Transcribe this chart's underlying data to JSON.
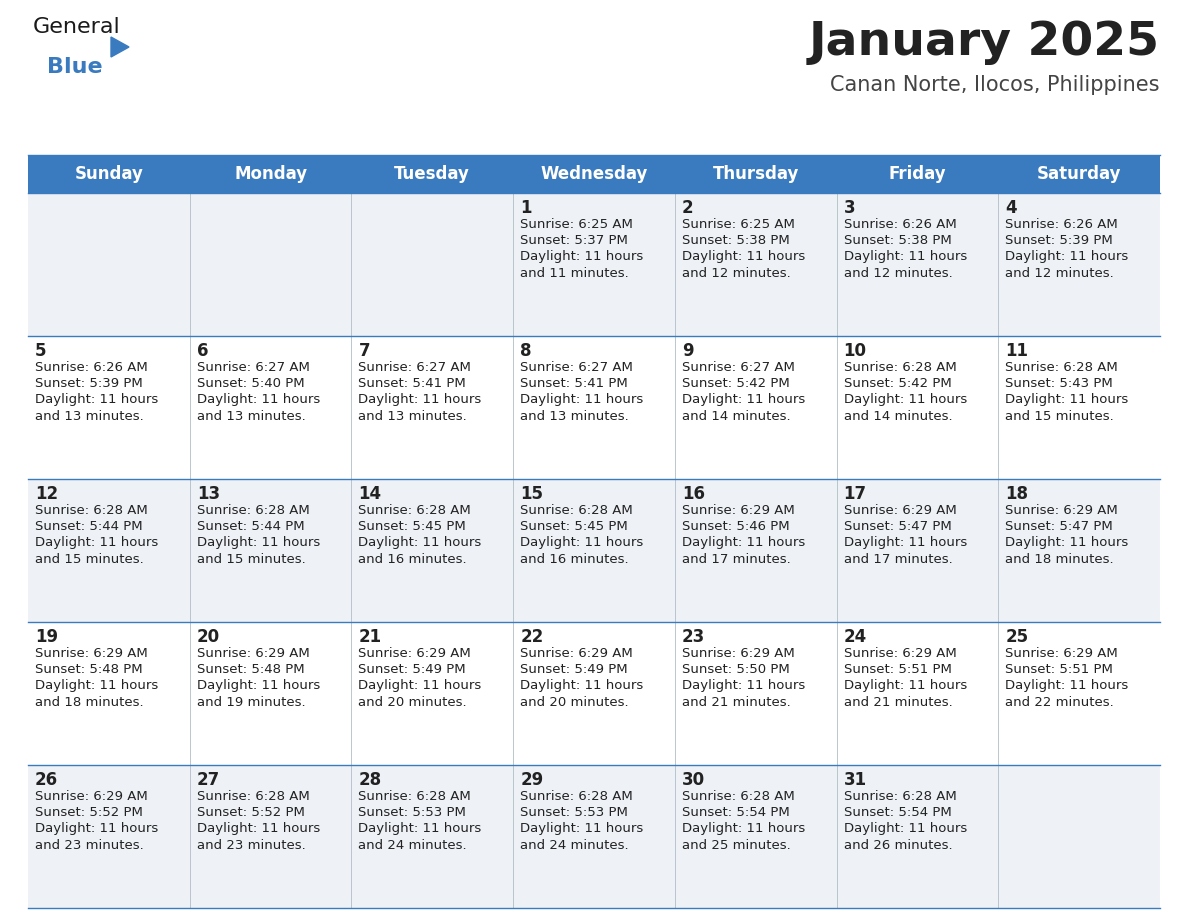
{
  "title": "January 2025",
  "subtitle": "Canan Norte, Ilocos, Philippines",
  "header_color": "#3a7bbf",
  "header_text_color": "#ffffff",
  "day_names": [
    "Sunday",
    "Monday",
    "Tuesday",
    "Wednesday",
    "Thursday",
    "Friday",
    "Saturday"
  ],
  "bg_color": "#ffffff",
  "cell_bg_even": "#eef2f7",
  "cell_bg_odd": "#ffffff",
  "row_line_color": "#3a7bbf",
  "text_color": "#222222",
  "title_color": "#222222",
  "subtitle_color": "#444444",
  "calendar": [
    [
      {
        "day": "",
        "sunrise": "",
        "sunset": "",
        "daylight": ""
      },
      {
        "day": "",
        "sunrise": "",
        "sunset": "",
        "daylight": ""
      },
      {
        "day": "",
        "sunrise": "",
        "sunset": "",
        "daylight": ""
      },
      {
        "day": "1",
        "sunrise": "6:25 AM",
        "sunset": "5:37 PM",
        "daylight": "11 hours\nand 11 minutes."
      },
      {
        "day": "2",
        "sunrise": "6:25 AM",
        "sunset": "5:38 PM",
        "daylight": "11 hours\nand 12 minutes."
      },
      {
        "day": "3",
        "sunrise": "6:26 AM",
        "sunset": "5:38 PM",
        "daylight": "11 hours\nand 12 minutes."
      },
      {
        "day": "4",
        "sunrise": "6:26 AM",
        "sunset": "5:39 PM",
        "daylight": "11 hours\nand 12 minutes."
      }
    ],
    [
      {
        "day": "5",
        "sunrise": "6:26 AM",
        "sunset": "5:39 PM",
        "daylight": "11 hours\nand 13 minutes."
      },
      {
        "day": "6",
        "sunrise": "6:27 AM",
        "sunset": "5:40 PM",
        "daylight": "11 hours\nand 13 minutes."
      },
      {
        "day": "7",
        "sunrise": "6:27 AM",
        "sunset": "5:41 PM",
        "daylight": "11 hours\nand 13 minutes."
      },
      {
        "day": "8",
        "sunrise": "6:27 AM",
        "sunset": "5:41 PM",
        "daylight": "11 hours\nand 13 minutes."
      },
      {
        "day": "9",
        "sunrise": "6:27 AM",
        "sunset": "5:42 PM",
        "daylight": "11 hours\nand 14 minutes."
      },
      {
        "day": "10",
        "sunrise": "6:28 AM",
        "sunset": "5:42 PM",
        "daylight": "11 hours\nand 14 minutes."
      },
      {
        "day": "11",
        "sunrise": "6:28 AM",
        "sunset": "5:43 PM",
        "daylight": "11 hours\nand 15 minutes."
      }
    ],
    [
      {
        "day": "12",
        "sunrise": "6:28 AM",
        "sunset": "5:44 PM",
        "daylight": "11 hours\nand 15 minutes."
      },
      {
        "day": "13",
        "sunrise": "6:28 AM",
        "sunset": "5:44 PM",
        "daylight": "11 hours\nand 15 minutes."
      },
      {
        "day": "14",
        "sunrise": "6:28 AM",
        "sunset": "5:45 PM",
        "daylight": "11 hours\nand 16 minutes."
      },
      {
        "day": "15",
        "sunrise": "6:28 AM",
        "sunset": "5:45 PM",
        "daylight": "11 hours\nand 16 minutes."
      },
      {
        "day": "16",
        "sunrise": "6:29 AM",
        "sunset": "5:46 PM",
        "daylight": "11 hours\nand 17 minutes."
      },
      {
        "day": "17",
        "sunrise": "6:29 AM",
        "sunset": "5:47 PM",
        "daylight": "11 hours\nand 17 minutes."
      },
      {
        "day": "18",
        "sunrise": "6:29 AM",
        "sunset": "5:47 PM",
        "daylight": "11 hours\nand 18 minutes."
      }
    ],
    [
      {
        "day": "19",
        "sunrise": "6:29 AM",
        "sunset": "5:48 PM",
        "daylight": "11 hours\nand 18 minutes."
      },
      {
        "day": "20",
        "sunrise": "6:29 AM",
        "sunset": "5:48 PM",
        "daylight": "11 hours\nand 19 minutes."
      },
      {
        "day": "21",
        "sunrise": "6:29 AM",
        "sunset": "5:49 PM",
        "daylight": "11 hours\nand 20 minutes."
      },
      {
        "day": "22",
        "sunrise": "6:29 AM",
        "sunset": "5:49 PM",
        "daylight": "11 hours\nand 20 minutes."
      },
      {
        "day": "23",
        "sunrise": "6:29 AM",
        "sunset": "5:50 PM",
        "daylight": "11 hours\nand 21 minutes."
      },
      {
        "day": "24",
        "sunrise": "6:29 AM",
        "sunset": "5:51 PM",
        "daylight": "11 hours\nand 21 minutes."
      },
      {
        "day": "25",
        "sunrise": "6:29 AM",
        "sunset": "5:51 PM",
        "daylight": "11 hours\nand 22 minutes."
      }
    ],
    [
      {
        "day": "26",
        "sunrise": "6:29 AM",
        "sunset": "5:52 PM",
        "daylight": "11 hours\nand 23 minutes."
      },
      {
        "day": "27",
        "sunrise": "6:28 AM",
        "sunset": "5:52 PM",
        "daylight": "11 hours\nand 23 minutes."
      },
      {
        "day": "28",
        "sunrise": "6:28 AM",
        "sunset": "5:53 PM",
        "daylight": "11 hours\nand 24 minutes."
      },
      {
        "day": "29",
        "sunrise": "6:28 AM",
        "sunset": "5:53 PM",
        "daylight": "11 hours\nand 24 minutes."
      },
      {
        "day": "30",
        "sunrise": "6:28 AM",
        "sunset": "5:54 PM",
        "daylight": "11 hours\nand 25 minutes."
      },
      {
        "day": "31",
        "sunrise": "6:28 AM",
        "sunset": "5:54 PM",
        "daylight": "11 hours\nand 26 minutes."
      },
      {
        "day": "",
        "sunrise": "",
        "sunset": "",
        "daylight": ""
      }
    ]
  ]
}
